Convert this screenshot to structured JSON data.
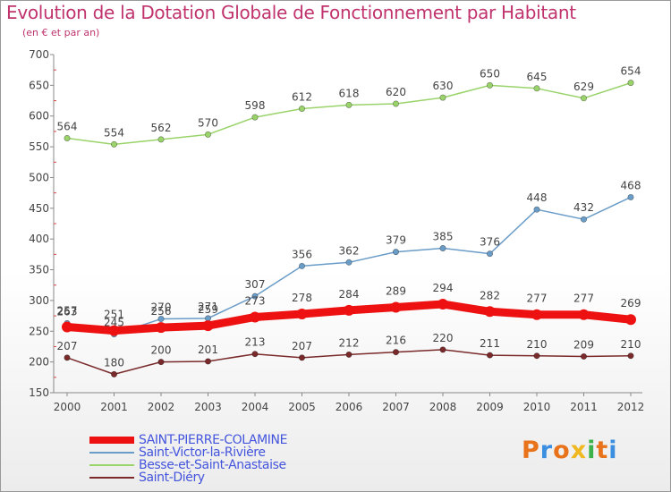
{
  "header": {
    "title": "Evolution de la Dotation Globale de Fonctionnement par Habitant",
    "subtitle": "(en € et par an)"
  },
  "logo": {
    "text": "Proxiti",
    "colors": [
      "#e8731a",
      "#3b8ee0",
      "#e8731a",
      "#f0b820",
      "#3bb34a",
      "#e8731a",
      "#3b8ee0"
    ]
  },
  "chart_data": {
    "type": "line",
    "x": [
      "2000",
      "2001",
      "2002",
      "2003",
      "2004",
      "2005",
      "2006",
      "2007",
      "2008",
      "2009",
      "2010",
      "2011",
      "2012"
    ],
    "ylim": [
      150,
      700
    ],
    "yticks": [
      150,
      200,
      250,
      300,
      350,
      400,
      450,
      500,
      550,
      600,
      650,
      700
    ],
    "grid": false,
    "legend_position": "bottom-left",
    "series": [
      {
        "name": "SAINT-PIERRE-COLAMINE",
        "color": "#ee1111",
        "values": [
          257,
          251,
          256,
          259,
          273,
          278,
          284,
          289,
          294,
          282,
          277,
          277,
          269
        ]
      },
      {
        "name": "Saint-Victor-la-Rivière",
        "color": "#6a9cc8",
        "values": [
          263,
          245,
          270,
          271,
          307,
          356,
          362,
          379,
          385,
          376,
          448,
          432,
          468
        ]
      },
      {
        "name": "Besse-et-Saint-Anastaise",
        "color": "#99d36a",
        "values": [
          564,
          554,
          562,
          570,
          598,
          612,
          618,
          620,
          630,
          650,
          645,
          629,
          654
        ]
      },
      {
        "name": "Saint-Diéry",
        "color": "#7a2a2a",
        "values": [
          207,
          180,
          200,
          201,
          213,
          207,
          212,
          216,
          220,
          211,
          210,
          209,
          210
        ]
      }
    ]
  }
}
